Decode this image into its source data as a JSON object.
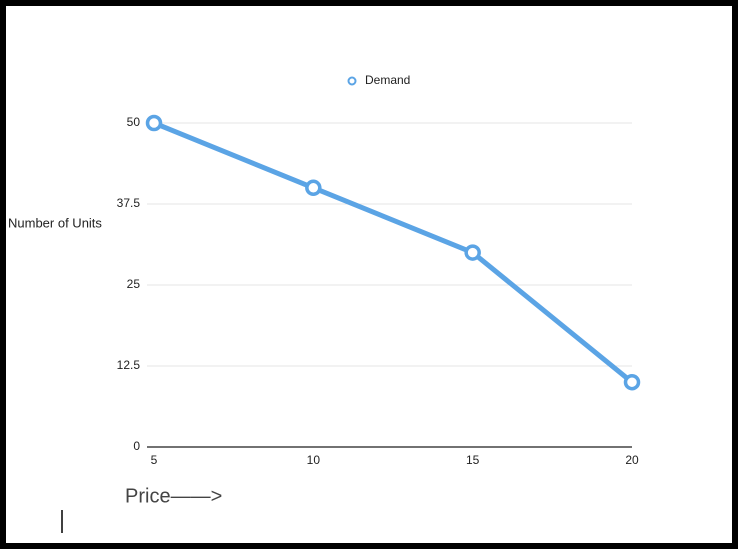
{
  "chart_data": {
    "type": "line",
    "legend": "top",
    "x": [
      5,
      10,
      15,
      20
    ],
    "series": [
      {
        "name": "Demand",
        "color": "#5ba4e5",
        "values": [
          50,
          40,
          30,
          10
        ]
      }
    ],
    "xlim": [
      5,
      20
    ],
    "xticks": [
      5,
      10,
      15,
      20
    ],
    "ylim": [
      0,
      50
    ],
    "yticks": [
      0,
      12.5,
      25,
      37.5,
      50
    ],
    "grid": true,
    "y_label": "Number of Units",
    "x_label": "Price——>"
  }
}
